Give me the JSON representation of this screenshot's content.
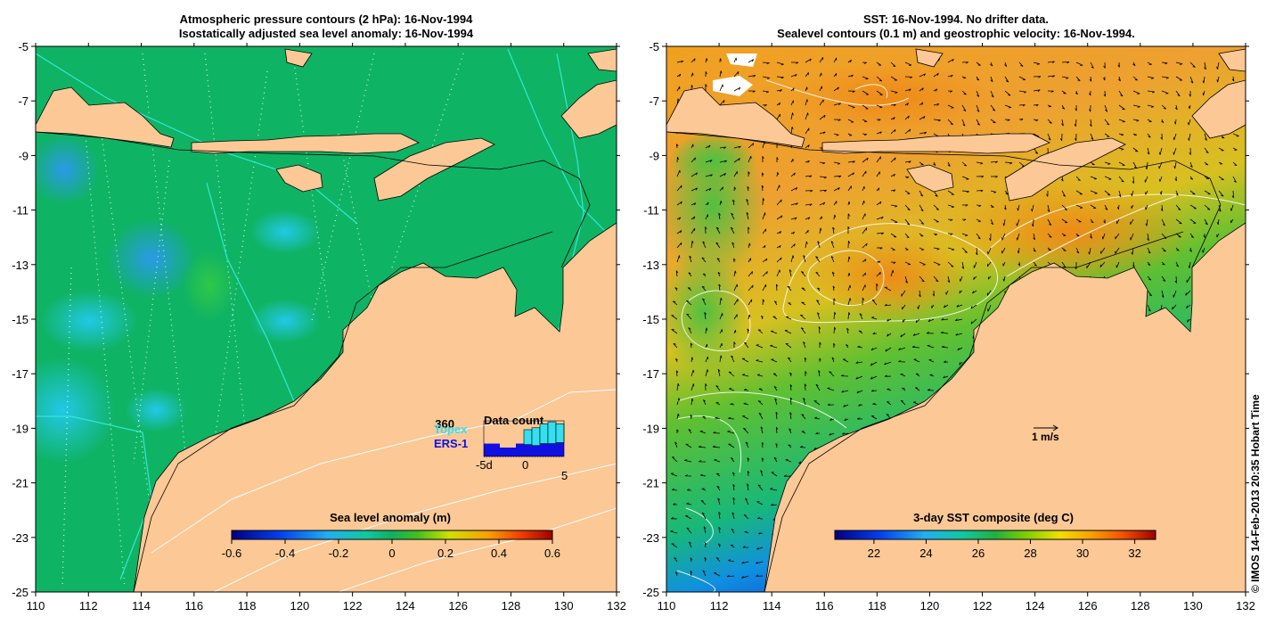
{
  "left_panel": {
    "title_line1": "Atmospheric pressure contours (2 hPa): 16-Nov-1994",
    "title_line2": "Isostatically adjusted sea level anomaly: 16-Nov-1994",
    "colorbar": {
      "label": "Sea level anomaly (m)",
      "ticks": [
        "-0.6",
        "-0.4",
        "-0.2",
        "0",
        "0.2",
        "0.4",
        "0.6"
      ]
    },
    "data_count": {
      "title": "Data count",
      "max_label": "360",
      "legend_topex": "Topex",
      "legend_ers": "ERS-1",
      "axis_labels": [
        "-5d",
        "0",
        "5"
      ],
      "topex_counts": [
        0,
        0,
        0,
        0,
        0,
        150,
        180,
        200,
        220,
        190
      ],
      "ers_counts": [
        130,
        130,
        90,
        90,
        130,
        120,
        110,
        130,
        130,
        140
      ],
      "colors": {
        "topex": "#33e0f0",
        "ers": "#1010e0"
      }
    }
  },
  "right_panel": {
    "title_line1": "SST: 16-Nov-1994. No drifter data.",
    "title_line2": "Sealevel contours (0.1 m) and geostrophic velocity: 16-Nov-1994.",
    "colorbar": {
      "label": "3-day SST composite (deg C)",
      "ticks": [
        "22",
        "24",
        "26",
        "28",
        "30",
        "32"
      ]
    },
    "velocity_scale_label": "1 m/s"
  },
  "axes": {
    "x_ticks": [
      "110",
      "112",
      "114",
      "116",
      "118",
      "120",
      "122",
      "124",
      "126",
      "128",
      "130",
      "132"
    ],
    "y_ticks": [
      "-5",
      "-7",
      "-9",
      "-11",
      "-13",
      "-15",
      "-17",
      "-19",
      "-21",
      "-23",
      "-25"
    ]
  },
  "credit": "© IMOS 14-Feb-2013 20:35 Hobart Time",
  "colors": {
    "land": "#fbc896",
    "ocean_left": "#0fb364",
    "ocean_right": "#f0a828"
  }
}
